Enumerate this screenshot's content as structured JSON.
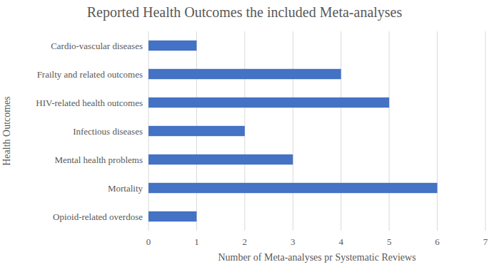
{
  "chart_data": {
    "type": "bar",
    "orientation": "horizontal",
    "title": "Reported Health Outcomes the included Meta-analyses",
    "xlabel": "Number of Meta-analyses pr Systematic Reviews",
    "ylabel": "Health Outcomes",
    "categories": [
      "Cardio-vascular diseases",
      "Frailty and related outcomes",
      "HIV-related health outcomes",
      "Infectious diseases",
      "Mental health problems",
      "Mortality",
      "Opioid-related overdose"
    ],
    "values": [
      1,
      4,
      5,
      2,
      3,
      6,
      1
    ],
    "color": "#4472c4",
    "xlim": [
      0,
      7
    ],
    "xticks": [
      0,
      1,
      2,
      3,
      4,
      5,
      6,
      7
    ],
    "grid": true
  }
}
